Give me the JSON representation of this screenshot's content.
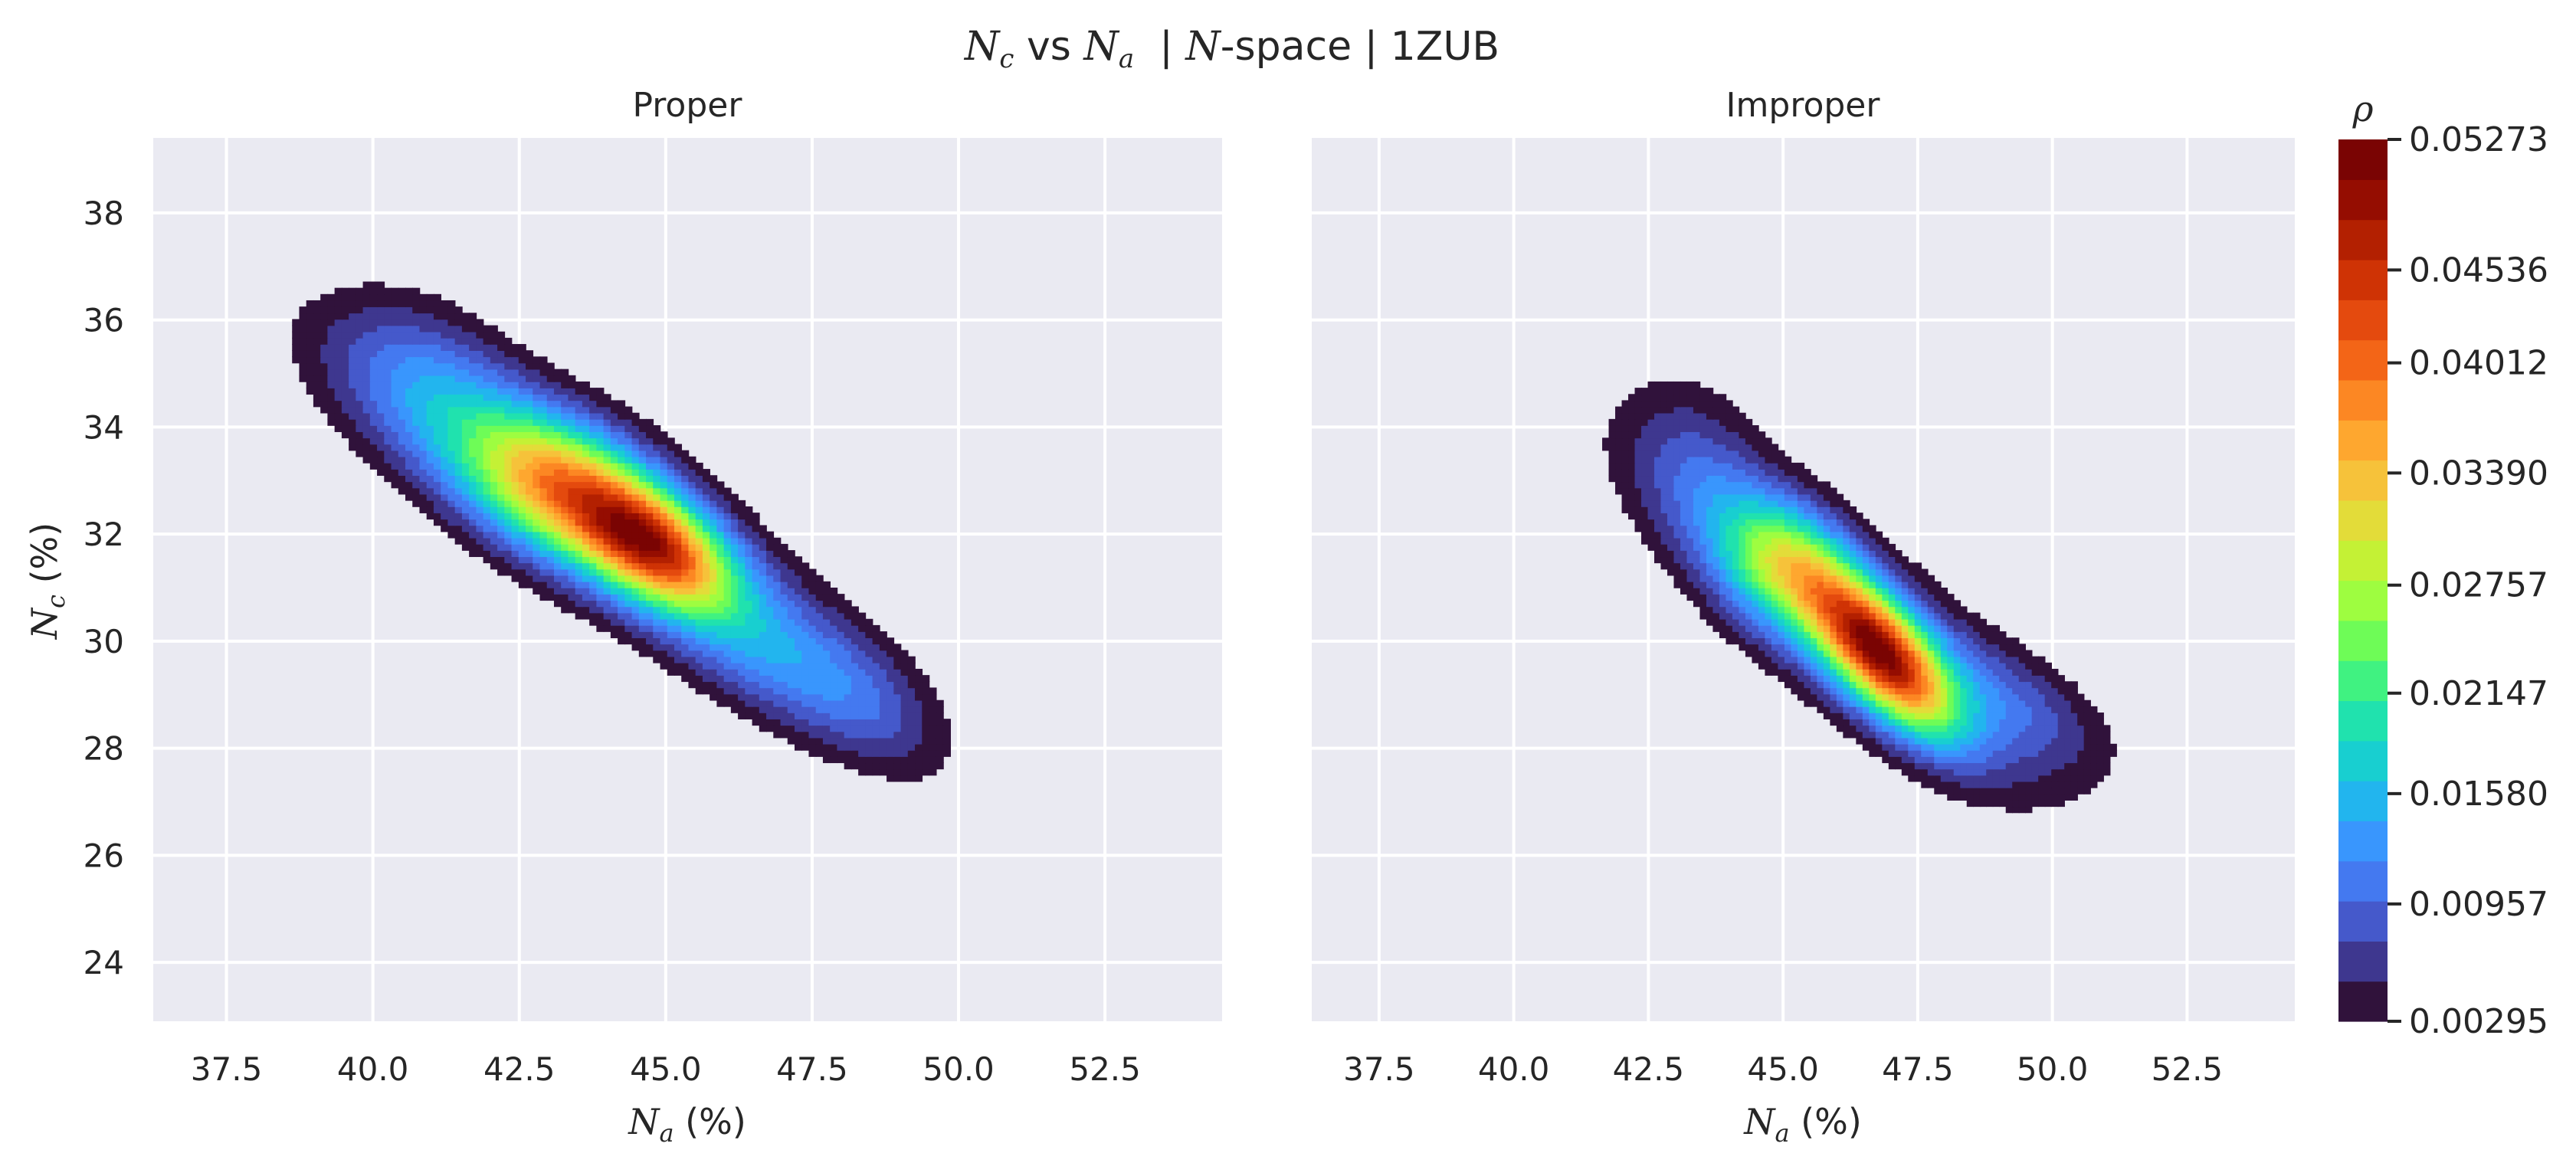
{
  "chart_data": {
    "type": "kde_contour",
    "title_parts": {
      "a": "N",
      "a_sub": "c",
      "vs": " vs ",
      "b": "N",
      "b_sub": "a",
      "mid": "  | ",
      "c": "N",
      "rest": "-space | 1ZUB"
    },
    "x_axis": {
      "label_sym": "N",
      "label_sub": "a",
      "label_unit": " (%)",
      "range": [
        36.25,
        54.5
      ],
      "ticks": [
        37.5,
        40.0,
        42.5,
        45.0,
        47.5,
        50.0,
        52.5
      ],
      "tick_labels": [
        "37.5",
        "40.0",
        "42.5",
        "45.0",
        "47.5",
        "50.0",
        "52.5"
      ]
    },
    "y_axis": {
      "label_sym": "N",
      "label_sub": "c",
      "label_unit": " (%)",
      "range": [
        22.9,
        39.4
      ],
      "ticks": [
        24,
        26,
        28,
        30,
        32,
        34,
        36,
        38
      ],
      "tick_labels": [
        "24",
        "26",
        "28",
        "30",
        "32",
        "34",
        "36",
        "38"
      ]
    },
    "grid": true,
    "panels": [
      {
        "title": "Proper",
        "components": [
          {
            "cx": 43.2,
            "cy": 33.0,
            "sx": 1.1,
            "sy": 0.9,
            "rho": -0.3,
            "w": 0.5
          },
          {
            "cx": 44.8,
            "cy": 31.8,
            "sx": 0.9,
            "sy": 0.8,
            "rho": -0.5,
            "w": 0.8
          },
          {
            "cx": 43.5,
            "cy": 32.5,
            "sx": 2.4,
            "sy": 1.8,
            "rho": -0.82,
            "w": 0.45
          },
          {
            "cx": 41.0,
            "cy": 35.0,
            "sx": 1.2,
            "sy": 1.1,
            "rho": -0.4,
            "w": 0.18
          },
          {
            "cx": 47.0,
            "cy": 29.6,
            "sx": 1.3,
            "sy": 1.1,
            "rho": -0.6,
            "w": 0.22
          },
          {
            "cx": 48.6,
            "cy": 28.8,
            "sx": 0.9,
            "sy": 1.0,
            "rho": -0.5,
            "w": 0.12
          }
        ]
      },
      {
        "title": "Improper",
        "components": [
          {
            "cx": 45.0,
            "cy": 31.5,
            "sx": 0.8,
            "sy": 0.8,
            "rho": -0.2,
            "w": 0.35
          },
          {
            "cx": 46.8,
            "cy": 29.8,
            "sx": 0.9,
            "sy": 1.0,
            "rho": -0.7,
            "w": 0.95
          },
          {
            "cx": 46.0,
            "cy": 30.5,
            "sx": 2.2,
            "sy": 1.9,
            "rho": -0.82,
            "w": 0.45
          },
          {
            "cx": 43.5,
            "cy": 33.5,
            "sx": 0.9,
            "sy": 1.2,
            "rho": -0.3,
            "w": 0.12
          },
          {
            "cx": 49.5,
            "cy": 28.8,
            "sx": 1.2,
            "sy": 0.9,
            "rho": -0.6,
            "w": 0.16
          }
        ]
      }
    ],
    "colorbar": {
      "label": "ρ",
      "min": 0.00295,
      "max": 0.05273,
      "ticks": [
        0.05273,
        0.04536,
        0.04012,
        0.0339,
        0.02757,
        0.02147,
        0.0158,
        0.00957,
        0.00295
      ],
      "tick_labels": [
        "0.05273",
        "0.04536",
        "0.04012",
        "0.03390",
        "0.02757",
        "0.02147",
        "0.01580",
        "0.00957",
        "0.00295"
      ],
      "colors": [
        "#30123b",
        "#3e378f",
        "#4559cb",
        "#4479f0",
        "#3996fd",
        "#22b5ee",
        "#18cfd0",
        "#20e2ae",
        "#40f281",
        "#6efc57",
        "#9efd40",
        "#c4f135",
        "#e3dc39",
        "#f6c23a",
        "#fea72f",
        "#fc8723",
        "#f36517",
        "#e44a0e",
        "#cf3305",
        "#b32001",
        "#950d01",
        "#7a0403"
      ],
      "cmap": "turbo"
    }
  }
}
